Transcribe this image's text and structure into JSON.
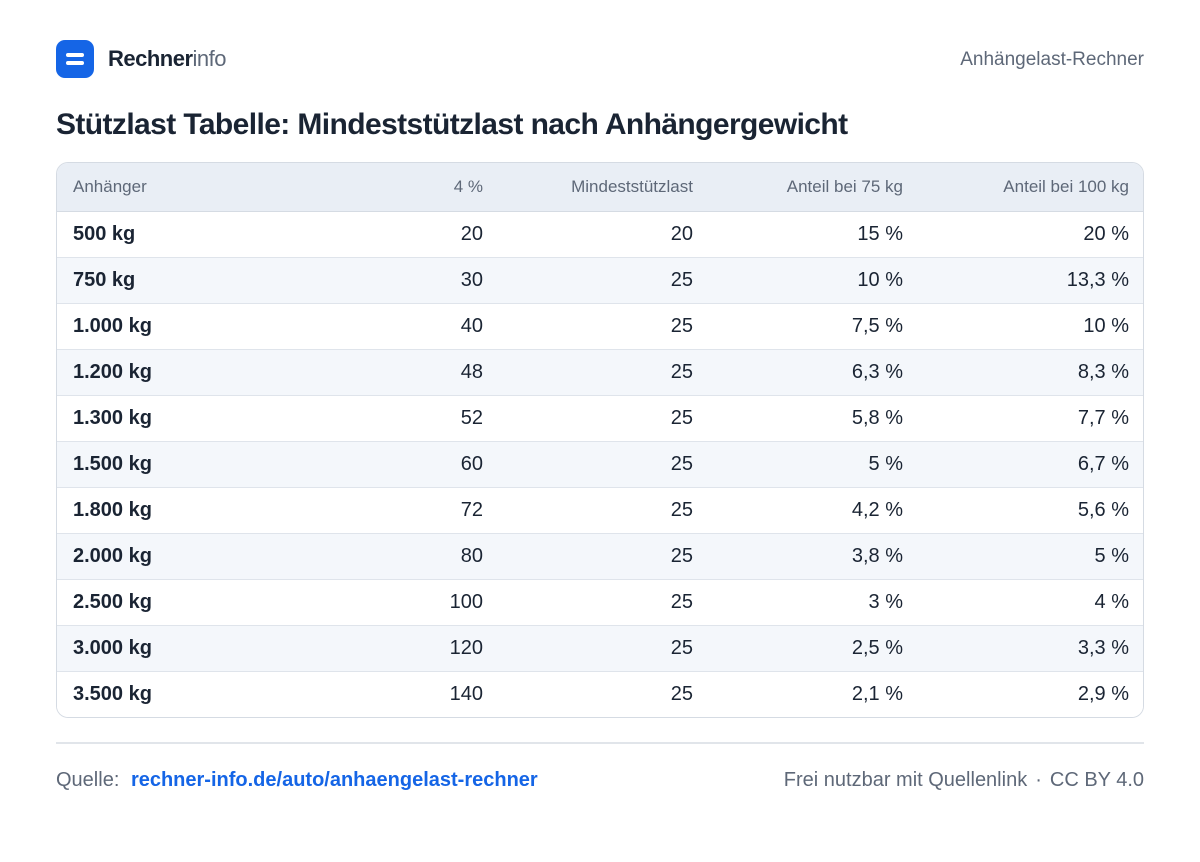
{
  "header": {
    "brand_bold": "Rechner",
    "brand_light": "info",
    "right_text": "Anhängelast-Rechner"
  },
  "title": "Stützlast Tabelle: Mindeststützlast nach Anhängergewicht",
  "table": {
    "columns": [
      "Anhänger",
      "4 %",
      "Mindeststützlast",
      "Anteil bei 75 kg",
      "Anteil bei 100 kg"
    ],
    "rows": [
      [
        "500 kg",
        "20",
        "20",
        "15 %",
        "20 %"
      ],
      [
        "750 kg",
        "30",
        "25",
        "10 %",
        "13,3 %"
      ],
      [
        "1.000 kg",
        "40",
        "25",
        "7,5 %",
        "10 %"
      ],
      [
        "1.200 kg",
        "48",
        "25",
        "6,3 %",
        "8,3 %"
      ],
      [
        "1.300 kg",
        "52",
        "25",
        "5,8 %",
        "7,7 %"
      ],
      [
        "1.500 kg",
        "60",
        "25",
        "5 %",
        "6,7 %"
      ],
      [
        "1.800 kg",
        "72",
        "25",
        "4,2 %",
        "5,6 %"
      ],
      [
        "2.000 kg",
        "80",
        "25",
        "3,8 %",
        "5 %"
      ],
      [
        "2.500 kg",
        "100",
        "25",
        "3 %",
        "4 %"
      ],
      [
        "3.000 kg",
        "120",
        "25",
        "2,5 %",
        "3,3 %"
      ],
      [
        "3.500 kg",
        "140",
        "25",
        "2,1 %",
        "2,9 %"
      ]
    ]
  },
  "footer": {
    "source_label": "Quelle:",
    "source_link": "rechner-info.de/auto/anhaengelast-rechner",
    "license_text": "Frei nutzbar mit Quellenlink",
    "separator": "·",
    "license": "CC BY 4.0"
  },
  "colors": {
    "accent": "#1565e6",
    "text": "#1a2433",
    "muted": "#5e6878",
    "header_bg": "#e9eef5",
    "row_alt": "#f4f7fb"
  }
}
